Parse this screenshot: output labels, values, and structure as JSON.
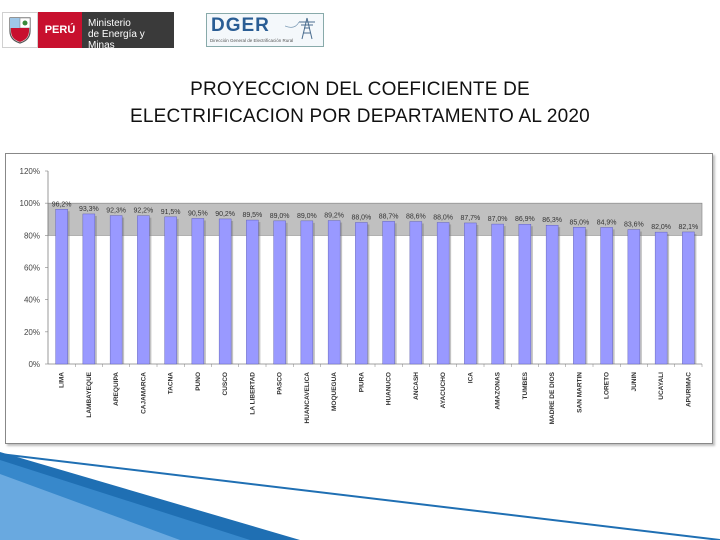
{
  "header": {
    "peru_label": "PERÚ",
    "ministry_line1": "Ministerio",
    "ministry_line2": "de Energía y Minas",
    "dger_label": "DGER",
    "dger_sub": "Dirección General de Electrificación Rural"
  },
  "slide": {
    "title_line1": "PROYECCION DEL COEFICIENTE DE",
    "title_line2": "ELECTRIFICACION POR DEPARTAMENTO AL 2020"
  },
  "colors": {
    "bar": "#9999ff",
    "plot_area": "#c0c0c0",
    "accent_blue": "#1f6fb3"
  },
  "chart_data": {
    "type": "bar",
    "categories": [
      "LIMA",
      "LAMBAYEQUE",
      "AREQUIPA",
      "CAJAMARCA",
      "TACNA",
      "PUNO",
      "CUSCO",
      "LA LIBERTAD",
      "PASCO",
      "HUANCAVELICA",
      "MOQUEGUA",
      "PIURA",
      "HUANUCO",
      "ANCASH",
      "AYACUCHO",
      "ICA",
      "AMAZONAS",
      "TUMBES",
      "MADRE DE DIOS",
      "SAN MARTIN",
      "LORETO",
      "JUNIN",
      "UCAYALI",
      "APURIMAC"
    ],
    "values": [
      96.2,
      93.3,
      92.3,
      92.2,
      91.5,
      90.5,
      90.2,
      89.5,
      89.0,
      89.0,
      89.2,
      88.0,
      88.7,
      88.6,
      88.0,
      87.7,
      87.0,
      86.9,
      86.3,
      85.0,
      84.9,
      83.6,
      82.0,
      82.1
    ],
    "data_labels": [
      "96,2%",
      "93,3%",
      "92,3%",
      "92,2%",
      "91,5%",
      "90,5%",
      "90,2%",
      "89,5%",
      "89,0%",
      "89,0%",
      "89,2%",
      "88,0%",
      "88,7%",
      "88,6%",
      "88,0%",
      "87,7%",
      "87,0%",
      "86,9%",
      "86,3%",
      "85,0%",
      "84,9%",
      "83,6%",
      "82,0%",
      "82,1%"
    ],
    "y_ticks": [
      "0%",
      "20%",
      "40%",
      "60%",
      "80%",
      "100%",
      "120%"
    ],
    "ylim": [
      0,
      120
    ],
    "grid": false,
    "legend": "none"
  }
}
